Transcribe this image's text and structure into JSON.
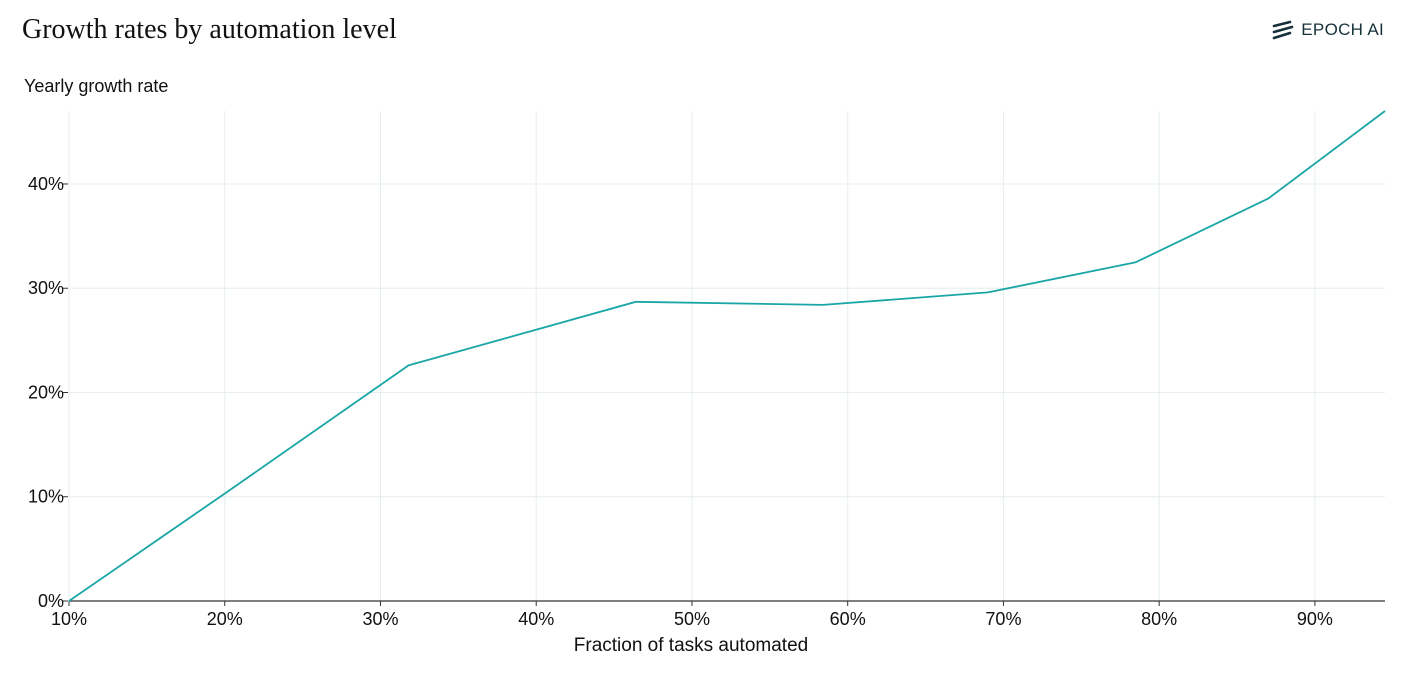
{
  "header": {
    "title": "Growth rates by automation level",
    "brand": "EPOCH AI"
  },
  "icons": {
    "brand_logo": "epoch-logo-icon"
  },
  "colors": {
    "line": "#1aa6a6",
    "grid": "#e6eeee",
    "axis": "#333333",
    "brand": "#16313a"
  },
  "chart_data": {
    "type": "line",
    "title": "Growth rates by automation level",
    "xlabel": "Fraction of tasks automated",
    "ylabel": "Yearly growth rate",
    "xlim": [
      0.1,
      0.945
    ],
    "ylim": [
      0,
      0.47
    ],
    "x_ticks": [
      0.1,
      0.2,
      0.3,
      0.4,
      0.5,
      0.6,
      0.7,
      0.8,
      0.9
    ],
    "x_tick_labels": [
      "10%",
      "20%",
      "30%",
      "40%",
      "50%",
      "60%",
      "70%",
      "80%",
      "90%"
    ],
    "y_ticks": [
      0,
      0.1,
      0.2,
      0.3,
      0.4
    ],
    "y_tick_labels": [
      "0%",
      "10%",
      "20%",
      "30%",
      "40%"
    ],
    "grid": true,
    "series": [
      {
        "x": [
          0.1,
          0.2,
          0.318,
          0.464,
          0.584,
          0.69,
          0.785,
          0.87,
          0.945
        ],
        "y": [
          0.0,
          0.103,
          0.226,
          0.287,
          0.284,
          0.296,
          0.325,
          0.386,
          0.47
        ]
      }
    ]
  }
}
